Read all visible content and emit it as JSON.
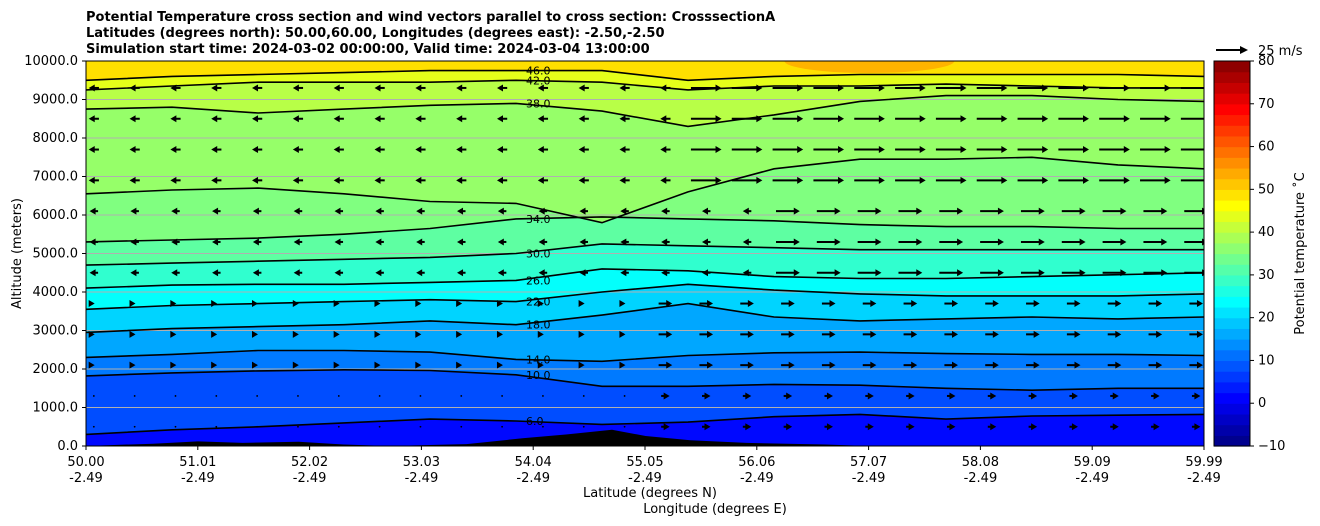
{
  "chart_data": {
    "type": "heatmap",
    "title": [
      "Potential Temperature cross section and wind vectors parallel to cross section: CrosssectionA",
      "Latitudes (degrees north): 50.00,60.00, Longitudes (degrees east): -2.50,-2.50",
      "Simulation start time: 2024-03-02 00:00:00, Valid time: 2024-03-04 13:00:00"
    ],
    "xlabel": [
      "Latitude (degrees N)",
      "Longitude (degrees E)"
    ],
    "ylabel": "Altitude (meters)",
    "x_ticks": [
      {
        "lat": "50.00",
        "lon": "-2.49"
      },
      {
        "lat": "51.01",
        "lon": "-2.49"
      },
      {
        "lat": "52.02",
        "lon": "-2.49"
      },
      {
        "lat": "53.03",
        "lon": "-2.49"
      },
      {
        "lat": "54.04",
        "lon": "-2.49"
      },
      {
        "lat": "55.05",
        "lon": "-2.49"
      },
      {
        "lat": "56.06",
        "lon": "-2.49"
      },
      {
        "lat": "57.07",
        "lon": "-2.49"
      },
      {
        "lat": "58.08",
        "lon": "-2.49"
      },
      {
        "lat": "59.09",
        "lon": "-2.49"
      },
      {
        "lat": "59.99",
        "lon": "-2.49"
      }
    ],
    "xlim": [
      50.0,
      59.99
    ],
    "ylim": [
      0,
      10000
    ],
    "y_ticks": [
      "0.0",
      "1000.0",
      "2000.0",
      "3000.0",
      "4000.0",
      "5000.0",
      "6000.0",
      "7000.0",
      "8000.0",
      "9000.0",
      "10000.0"
    ],
    "grid": "horizontal",
    "colorbar": {
      "label": "Potential temperature $^\\circ$C",
      "label_text": "Potential temperature ˚C",
      "ticks": [
        "−10",
        "0",
        "10",
        "20",
        "30",
        "40",
        "50",
        "60",
        "70",
        "80"
      ],
      "range": [
        -10,
        80
      ],
      "colormap": "jet"
    },
    "quiver_key": {
      "label": "25 m/s",
      "speed": 25
    },
    "contours": [
      {
        "level": "6.0",
        "y": [
          300,
          420,
          500,
          600,
          700,
          650,
          560,
          620,
          760,
          820,
          700,
          780,
          800,
          820
        ]
      },
      {
        "level": "10.0",
        "y": [
          1820,
          1900,
          1950,
          1980,
          1960,
          1850,
          1550,
          1550,
          1600,
          1580,
          1500,
          1450,
          1500,
          1500
        ]
      },
      {
        "level": "14.0",
        "y": [
          2300,
          2380,
          2480,
          2480,
          2440,
          2250,
          2200,
          2350,
          2420,
          2440,
          2400,
          2380,
          2380,
          2350
        ]
      },
      {
        "level": "18.0",
        "y": [
          2950,
          3050,
          3100,
          3150,
          3250,
          3150,
          3400,
          3700,
          3350,
          3250,
          3300,
          3350,
          3300,
          3350
        ]
      },
      {
        "level": "22.0",
        "y": [
          3550,
          3650,
          3700,
          3750,
          3800,
          3750,
          4000,
          4200,
          4050,
          3950,
          3900,
          3900,
          3900,
          3950
        ]
      },
      {
        "level": "26.0",
        "y": [
          4100,
          4180,
          4200,
          4200,
          4250,
          4300,
          4600,
          4550,
          4400,
          4350,
          4350,
          4400,
          4450,
          4500
        ]
      },
      {
        "level": "30.0",
        "y": [
          4700,
          4750,
          4800,
          4850,
          4900,
          5000,
          5250,
          5200,
          5150,
          5100,
          5100,
          5100,
          5100,
          5100
        ]
      },
      {
        "level": "34.0",
        "y": [
          5300,
          5350,
          5400,
          5500,
          5650,
          5900,
          5950,
          5900,
          5850,
          5750,
          5700,
          5700,
          5650,
          5650
        ]
      },
      {
        "level": "",
        "y": [
          6550,
          6650,
          6700,
          6550,
          6350,
          6300,
          5800,
          6600,
          7200,
          7450,
          7450,
          7500,
          7300,
          7200
        ]
      },
      {
        "level": "38.0",
        "y": [
          8750,
          8800,
          8650,
          8750,
          8850,
          8900,
          8700,
          8300,
          8600,
          8950,
          9100,
          9100,
          9000,
          8950
        ]
      },
      {
        "level": "42.0",
        "y": [
          9250,
          9350,
          9450,
          9450,
          9450,
          9500,
          9450,
          9250,
          9350,
          9350,
          9400,
          9350,
          9300,
          9300
        ]
      },
      {
        "level": "46.0",
        "y": [
          9500,
          9600,
          9650,
          9700,
          9750,
          9750,
          9750,
          9500,
          9600,
          9650,
          9650,
          9650,
          9650,
          9600
        ]
      }
    ],
    "terrain": [
      {
        "x": 50.0,
        "h": 0
      },
      {
        "x": 50.6,
        "h": 60
      },
      {
        "x": 51.0,
        "h": 120
      },
      {
        "x": 51.4,
        "h": 80
      },
      {
        "x": 51.9,
        "h": 110
      },
      {
        "x": 52.3,
        "h": 40
      },
      {
        "x": 52.7,
        "h": 0
      },
      {
        "x": 53.4,
        "h": 50
      },
      {
        "x": 53.9,
        "h": 200
      },
      {
        "x": 54.3,
        "h": 300
      },
      {
        "x": 54.7,
        "h": 420
      },
      {
        "x": 55.0,
        "h": 260
      },
      {
        "x": 55.4,
        "h": 150
      },
      {
        "x": 55.9,
        "h": 80
      },
      {
        "x": 56.6,
        "h": 40
      },
      {
        "x": 57.0,
        "h": 0
      },
      {
        "x": 59.99,
        "h": 0
      }
    ]
  }
}
